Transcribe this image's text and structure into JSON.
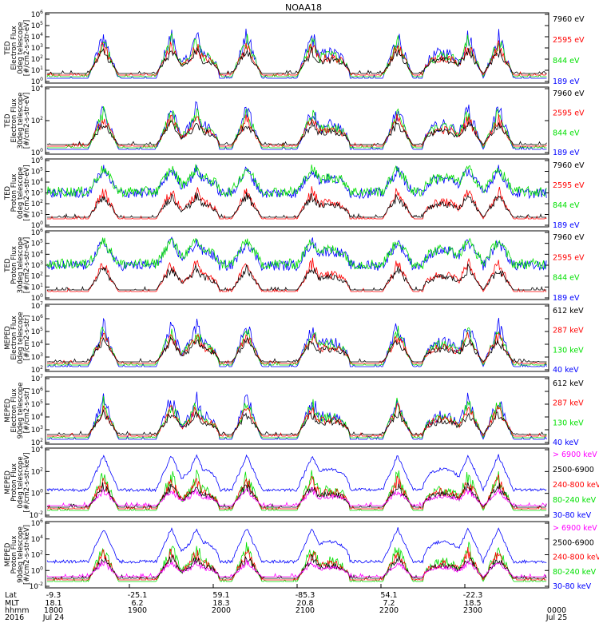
{
  "title": "NOAA18",
  "colors": {
    "black": "#000000",
    "red": "#ff0000",
    "green": "#00e000",
    "blue": "#0000ff",
    "magenta": "#ff00ff"
  },
  "chart_data": {
    "type": "line",
    "title": "NOAA18",
    "x_time_range": [
      "2016-07-24 18:00",
      "2016-07-25 00:00"
    ],
    "panels": [
      {
        "ylabel": [
          "TED",
          "Electron Flux",
          "0deg telescope",
          "[#/cm2-s-str-eV]"
        ],
        "yticks": [
          "10^0",
          "10^1",
          "10^2",
          "10^3",
          "10^4",
          "10^5",
          "10^6"
        ],
        "ylim": [
          0,
          6
        ],
        "legend": [
          {
            "text": "7960 eV",
            "color": "black"
          },
          {
            "text": "2595 eV",
            "color": "red"
          },
          {
            "text": "844 eV",
            "color": "green"
          },
          {
            "text": "189 eV",
            "color": "blue"
          }
        ]
      },
      {
        "ylabel": [
          "TED",
          "Electron Flux",
          "30deg telescope",
          "[#/cm2-s-str-eV]"
        ],
        "yticks": [
          "10^0",
          "10^2",
          "10^4"
        ],
        "ylim": [
          0,
          5
        ],
        "legend": [
          {
            "text": "7960 eV",
            "color": "black"
          },
          {
            "text": "2595 eV",
            "color": "red"
          },
          {
            "text": "844 eV",
            "color": "green"
          },
          {
            "text": "189 eV",
            "color": "blue"
          }
        ]
      },
      {
        "ylabel": [
          "TED",
          "Proton Flux",
          "0deg telescope",
          "[#/cm2-s-str-eV]"
        ],
        "yticks": [
          "10^0",
          "10^1",
          "10^2",
          "10^3",
          "10^4",
          "10^5",
          "10^6"
        ],
        "ylim": [
          0,
          6
        ],
        "legend": [
          {
            "text": "7960 eV",
            "color": "black"
          },
          {
            "text": "2595 eV",
            "color": "red"
          },
          {
            "text": "844 eV",
            "color": "green"
          },
          {
            "text": "189 eV",
            "color": "blue"
          }
        ]
      },
      {
        "ylabel": [
          "TED",
          "Proton Flux",
          "30deg telescope",
          "[#/cm2-s-str-eV]"
        ],
        "yticks": [
          "10^0",
          "10^1",
          "10^2",
          "10^3",
          "10^4",
          "10^5",
          "10^6"
        ],
        "ylim": [
          0,
          6
        ],
        "legend": [
          {
            "text": "7960 eV",
            "color": "black"
          },
          {
            "text": "2595 eV",
            "color": "red"
          },
          {
            "text": "844 eV",
            "color": "green"
          },
          {
            "text": "189 eV",
            "color": "blue"
          }
        ]
      },
      {
        "ylabel": [
          "MEPED",
          "Electron Flux",
          "0deg telescope",
          "[#/cm2-s-str]"
        ],
        "yticks": [
          "10^2",
          "10^3",
          "10^4",
          "10^5",
          "10^6",
          "10^7"
        ],
        "ylim": [
          2,
          7
        ],
        "legend": [
          {
            "text": "612 keV",
            "color": "black"
          },
          {
            "text": "287 keV",
            "color": "red"
          },
          {
            "text": "130 keV",
            "color": "green"
          },
          {
            "text": "40 keV",
            "color": "blue"
          }
        ]
      },
      {
        "ylabel": [
          "MEPED",
          "Electron Flux",
          "90deg telescope",
          "[#/cm2-s-str]"
        ],
        "yticks": [
          "10^2",
          "10^3",
          "10^4",
          "10^5",
          "10^6",
          "10^7"
        ],
        "ylim": [
          2,
          7
        ],
        "legend": [
          {
            "text": "612 keV",
            "color": "black"
          },
          {
            "text": "287 keV",
            "color": "red"
          },
          {
            "text": "130 keV",
            "color": "green"
          },
          {
            "text": "40 keV",
            "color": "blue"
          }
        ]
      },
      {
        "ylabel": [
          "MEPED",
          "Proton Flux",
          "0deg telescope",
          "[#/cm2-s-str-keV]"
        ],
        "yticks": [
          "10^-2",
          "10^0",
          "10^2",
          "10^4"
        ],
        "ylim": [
          -2,
          5
        ],
        "legend": [
          {
            "text": "> 6900 keV",
            "color": "magenta"
          },
          {
            "text": "2500-6900",
            "color": "black"
          },
          {
            "text": "240-800 keV",
            "color": "red"
          },
          {
            "text": "80-240 keV",
            "color": "green"
          },
          {
            "text": "30-80 keV",
            "color": "blue"
          }
        ]
      },
      {
        "ylabel": [
          "MEPED",
          "Proton Flux",
          "90deg telescope",
          "[#/cm2-s-str-keV]"
        ],
        "yticks": [
          "10^-2",
          "10^0",
          "10^2",
          "10^4",
          "10^6"
        ],
        "ylim": [
          -2,
          6
        ],
        "legend": [
          {
            "text": "> 6900 keV",
            "color": "magenta"
          },
          {
            "text": "2500-6900",
            "color": "black"
          },
          {
            "text": "240-800 keV",
            "color": "red"
          },
          {
            "text": "80-240 keV",
            "color": "green"
          },
          {
            "text": "30-80 keV",
            "color": "blue"
          }
        ]
      }
    ],
    "xaxis_rows": [
      "Lat",
      "MLT",
      "hhmm",
      "2016"
    ],
    "xaxis_columns": [
      {
        "lat": "-9.3",
        "mlt": "18.1",
        "hhmm": "1800",
        "date": "Jul 24"
      },
      {
        "lat": "-25.1",
        "mlt": "6.2",
        "hhmm": "1900",
        "date": ""
      },
      {
        "lat": "59.1",
        "mlt": "18.3",
        "hhmm": "2000",
        "date": ""
      },
      {
        "lat": "-85.3",
        "mlt": "20.8",
        "hhmm": "2100",
        "date": ""
      },
      {
        "lat": "54.1",
        "mlt": "7.2",
        "hhmm": "2200",
        "date": ""
      },
      {
        "lat": "-22.3",
        "mlt": "18.5",
        "hhmm": "2300",
        "date": ""
      },
      {
        "lat": "",
        "mlt": "",
        "hhmm": "0000",
        "date": "Jul 25"
      }
    ]
  }
}
